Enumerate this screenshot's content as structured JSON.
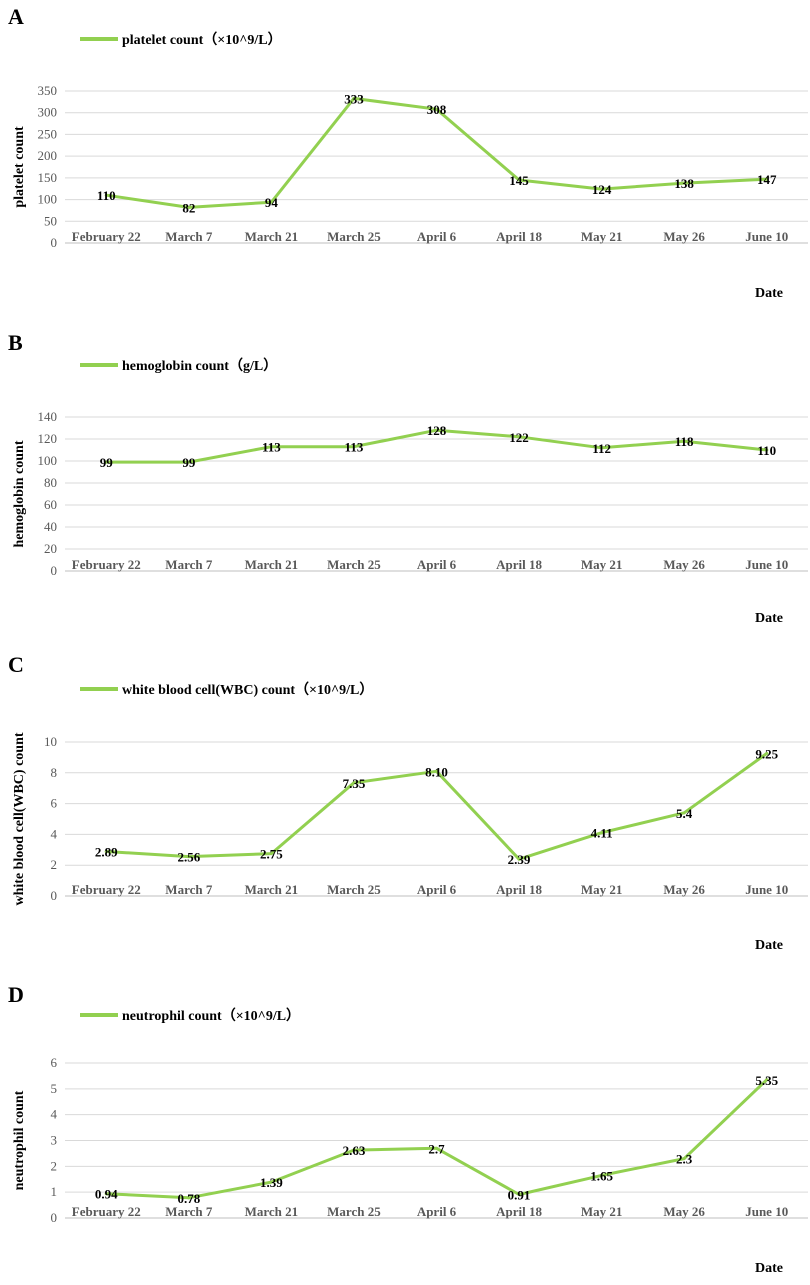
{
  "colors": {
    "series": "#92d050",
    "grid": "#d9d9d9",
    "axis": "#bfbfbf"
  },
  "chart_data": [
    {
      "type": "line",
      "panel": "A",
      "legend": "platelet count（×10^9/L）",
      "ylabel": "platelet count",
      "xlabel": "Date",
      "ylim": [
        0,
        350
      ],
      "yticks": [
        0,
        50,
        100,
        150,
        200,
        250,
        300,
        350
      ],
      "ytick_labels": [
        "0",
        "50",
        "100",
        "150",
        "200",
        "250",
        "300",
        "350"
      ],
      "categories": [
        "February 22",
        "March 7",
        "March 21",
        "March 25",
        "April 6",
        "April 18",
        "May 21",
        "May 26",
        "June 10"
      ],
      "values": [
        110,
        82,
        94,
        333,
        308,
        145,
        124,
        138,
        147
      ],
      "labels": [
        "110",
        "82",
        "94",
        "333",
        "308",
        "145",
        "124",
        "138",
        "147"
      ]
    },
    {
      "type": "line",
      "panel": "B",
      "legend": "hemoglobin count（g/L）",
      "ylabel": "hemoglobin count",
      "xlabel": "Date",
      "ylim": [
        0,
        140
      ],
      "yticks": [
        0,
        20,
        40,
        60,
        80,
        100,
        120,
        140
      ],
      "ytick_labels": [
        "0",
        "20",
        "40",
        "60",
        "80",
        "100",
        "120",
        "140"
      ],
      "categories": [
        "February 22",
        "March 7",
        "March 21",
        "March 25",
        "April 6",
        "April 18",
        "May 21",
        "May 26",
        "June 10"
      ],
      "values": [
        99,
        99,
        113,
        113,
        128,
        122,
        112,
        118,
        110
      ],
      "labels": [
        "99",
        "99",
        "113",
        "113",
        "128",
        "122",
        "112",
        "118",
        "110"
      ]
    },
    {
      "type": "line",
      "panel": "C",
      "legend": "white blood cell(WBC) count（×10^9/L）",
      "ylabel": "white blood cell(WBC) count",
      "xlabel": "Date",
      "ylim": [
        0,
        10
      ],
      "yticks": [
        0,
        2,
        4,
        6,
        8,
        10
      ],
      "ytick_labels": [
        "0",
        "2",
        "4",
        "6",
        "8",
        "10"
      ],
      "categories": [
        "February 22",
        "March 7",
        "March 21",
        "March 25",
        "April 6",
        "April 18",
        "May 21",
        "May 26",
        "June 10"
      ],
      "values": [
        2.89,
        2.56,
        2.75,
        7.35,
        8.1,
        2.39,
        4.11,
        5.4,
        9.25
      ],
      "labels": [
        "2.89",
        "2.56",
        "2.75",
        "7.35",
        "8.10",
        "2.39",
        "4.11",
        "5.4",
        "9.25"
      ]
    },
    {
      "type": "line",
      "panel": "D",
      "legend": "neutrophil count（×10^9/L）",
      "ylabel": "neutrophil count",
      "xlabel": "Date",
      "ylim": [
        0,
        6
      ],
      "yticks": [
        0,
        1,
        2,
        3,
        4,
        5,
        6
      ],
      "ytick_labels": [
        "0",
        "1",
        "2",
        "3",
        "4",
        "5",
        "6"
      ],
      "categories": [
        "February 22",
        "March 7",
        "March 21",
        "March 25",
        "April 6",
        "April 18",
        "May 21",
        "May 26",
        "June 10"
      ],
      "values": [
        0.94,
        0.78,
        1.39,
        2.63,
        2.7,
        0.91,
        1.65,
        2.3,
        5.35
      ],
      "labels": [
        "0.94",
        "0.78",
        "1.39",
        "2.63",
        "2.7",
        "0.91",
        "1.65",
        "2.3",
        "5.35"
      ]
    }
  ]
}
